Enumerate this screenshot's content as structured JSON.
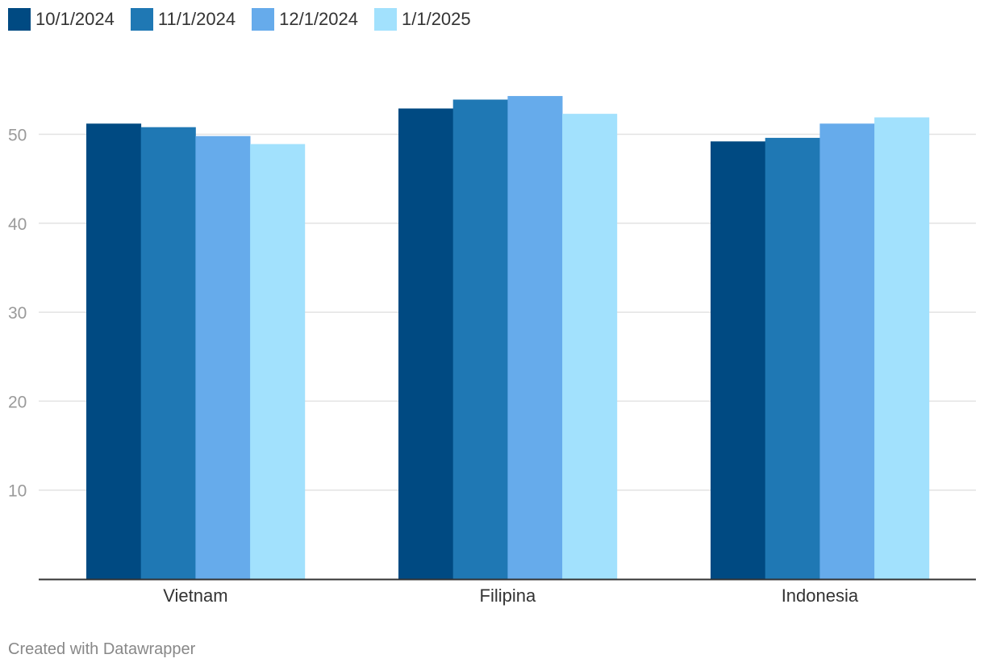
{
  "chart_data": {
    "type": "bar",
    "categories": [
      "Vietnam",
      "Filipina",
      "Indonesia"
    ],
    "series": [
      {
        "name": "10/1/2024",
        "color": "#004a82",
        "values": [
          51.2,
          52.9,
          49.2
        ]
      },
      {
        "name": "11/1/2024",
        "color": "#1f78b4",
        "values": [
          50.8,
          53.9,
          49.6
        ]
      },
      {
        "name": "12/1/2024",
        "color": "#66abeb",
        "values": [
          49.8,
          54.3,
          51.2
        ]
      },
      {
        "name": "1/1/2025",
        "color": "#a2e1fd",
        "values": [
          48.9,
          52.3,
          51.9
        ]
      }
    ],
    "y_ticks": [
      "10",
      "20",
      "30",
      "40",
      "50"
    ],
    "ylim": [
      0,
      60
    ],
    "grid": true,
    "legend_position": "top-left"
  },
  "footer": {
    "credit": "Created with Datawrapper"
  }
}
